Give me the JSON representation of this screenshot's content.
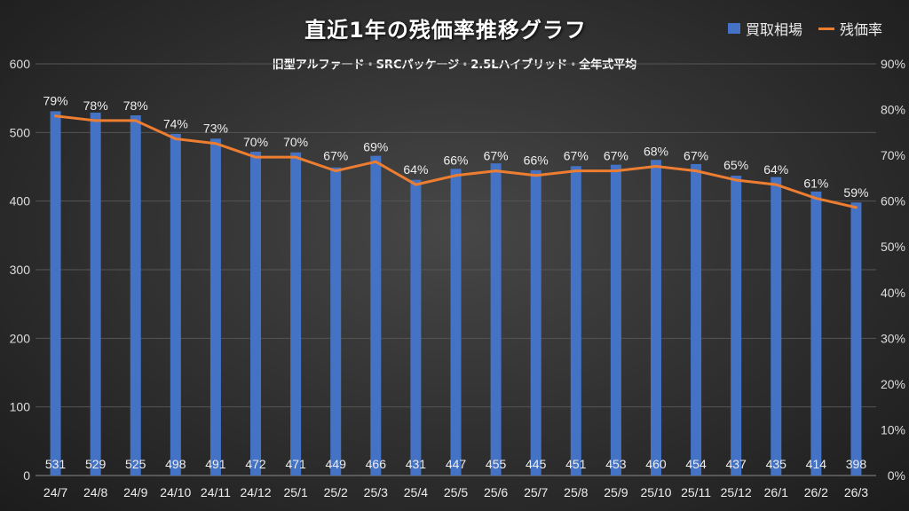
{
  "chart_data": {
    "type": "bar+line",
    "title": "直近1年の残価率推移グラフ",
    "subtitle": "旧型アルファード・SRCパッケージ・2.5Lハイブリッド・全年式平均",
    "categories": [
      "24/7",
      "24/8",
      "24/9",
      "24/10",
      "24/11",
      "24/12",
      "25/1",
      "25/2",
      "25/3",
      "25/4",
      "25/5",
      "25/6",
      "25/7",
      "25/8",
      "25/9",
      "25/10",
      "25/11",
      "25/12",
      "26/1",
      "26/2",
      "26/3"
    ],
    "series": [
      {
        "name": "買取相場",
        "type": "bar",
        "axis": "left",
        "color": "#4472c4",
        "values": [
          531,
          529,
          525,
          498,
          491,
          472,
          471,
          449,
          466,
          431,
          447,
          455,
          445,
          451,
          453,
          460,
          454,
          437,
          435,
          414,
          398
        ]
      },
      {
        "name": "残価率",
        "type": "line",
        "axis": "right",
        "color": "#ed7d31",
        "values": [
          79,
          78,
          78,
          74,
          73,
          70,
          70,
          67,
          69,
          64,
          66,
          67,
          66,
          67,
          67,
          68,
          67,
          65,
          64,
          61,
          59
        ]
      }
    ],
    "ylim": [
      0,
      600
    ],
    "yticks": [
      "0",
      "100",
      "200",
      "300",
      "400",
      "500",
      "600"
    ],
    "y2lim": [
      0,
      90
    ],
    "y2ticks": [
      "0%",
      "10%",
      "20%",
      "30%",
      "40%",
      "50%",
      "60%",
      "70%",
      "80%",
      "90%"
    ],
    "grid": true,
    "legend": "top-right"
  }
}
